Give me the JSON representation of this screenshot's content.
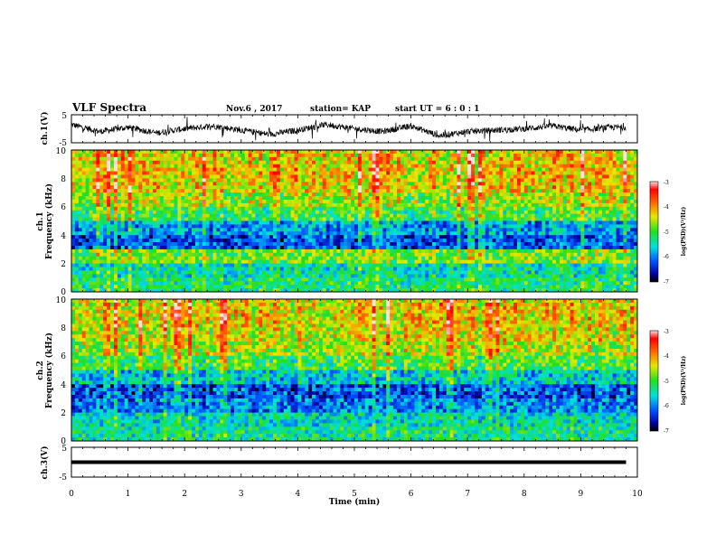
{
  "header": {
    "title": "VLF Spectra",
    "date": "Nov.6 , 2017",
    "station": "station= KAP",
    "start": "start UT = 6 : 0 : 1"
  },
  "panels": {
    "ch1_wave": {
      "ylabel": "ch.1(V)",
      "yticks": [
        "5",
        "-5"
      ]
    },
    "ch1_spec": {
      "ylabel1": "ch.1",
      "ylabel2": "Frequency (kHz)",
      "yticks": [
        "0",
        "2",
        "4",
        "6",
        "8",
        "10"
      ]
    },
    "ch2_spec": {
      "ylabel1": "ch.2",
      "ylabel2": "Frequency (kHz)",
      "yticks": [
        "0",
        "2",
        "4",
        "6",
        "8",
        "10"
      ]
    },
    "ch3_wave": {
      "ylabel": "ch.3(V)",
      "yticks": [
        "5",
        "-5"
      ]
    }
  },
  "xaxis": {
    "label": "Time (min)",
    "ticks": [
      "0",
      "1",
      "2",
      "3",
      "4",
      "5",
      "6",
      "7",
      "8",
      "9",
      "10"
    ]
  },
  "colorbars": [
    {
      "ticks": [
        "-3",
        "-4",
        "-5",
        "-6",
        "-7"
      ],
      "label": "log(PSD)(V²/Hz)"
    },
    {
      "ticks": [
        "-3",
        "-4",
        "-5",
        "-6",
        "-7"
      ],
      "label": "log(PSD)(V²/Hz)"
    }
  ],
  "colors": {
    "low": "#00008b",
    "mid_low": "#00e0e0",
    "mid": "#40e040",
    "mid_high": "#e8e800",
    "high": "#ff2000"
  },
  "chart_data": [
    {
      "type": "line",
      "name": "ch1-waveform",
      "xlim": [
        0,
        10
      ],
      "ylim": [
        -5,
        5
      ],
      "x": [
        0,
        0.5,
        1,
        1.5,
        2,
        2.5,
        3,
        3.5,
        4,
        4.5,
        5,
        5.5,
        6,
        6.5,
        7,
        7.5,
        8,
        8.5,
        9,
        9.5,
        9.8
      ],
      "y": [
        1.5,
        -1,
        0.5,
        -1.5,
        0,
        1,
        -0.5,
        -2,
        -0.5,
        1.5,
        0,
        -1,
        1,
        -2.5,
        -1,
        -0.5,
        0,
        1,
        -0.5,
        0.5,
        0.5
      ]
    },
    {
      "type": "heatmap",
      "name": "ch1-spectrogram",
      "xlim": [
        0,
        10
      ],
      "ylim": [
        0,
        10
      ],
      "zlim": [
        -7,
        -3
      ],
      "freq_khz": [
        0.5,
        1.5,
        2.5,
        3.5,
        4.5,
        5.5,
        6.5,
        7.5,
        8.5,
        9.5
      ],
      "mean_log_psd": [
        -5.2,
        -5.4,
        -4.8,
        -6.2,
        -5.8,
        -5.0,
        -4.6,
        -4.3,
        -4.2,
        -4.3
      ]
    },
    {
      "type": "heatmap",
      "name": "ch2-spectrogram",
      "xlim": [
        0,
        10
      ],
      "ylim": [
        0,
        10
      ],
      "zlim": [
        -7,
        -3
      ],
      "freq_khz": [
        0.5,
        1.5,
        2.5,
        3.5,
        4.5,
        5.5,
        6.5,
        7.5,
        8.5,
        9.5
      ],
      "mean_log_psd": [
        -5.3,
        -5.5,
        -6.0,
        -6.2,
        -5.6,
        -5.0,
        -4.6,
        -4.4,
        -4.3,
        -4.3
      ]
    },
    {
      "type": "line",
      "name": "ch3-waveform",
      "xlim": [
        0,
        10
      ],
      "ylim": [
        -5,
        5
      ],
      "x": [
        0,
        9.8
      ],
      "y": [
        0,
        0
      ]
    }
  ]
}
